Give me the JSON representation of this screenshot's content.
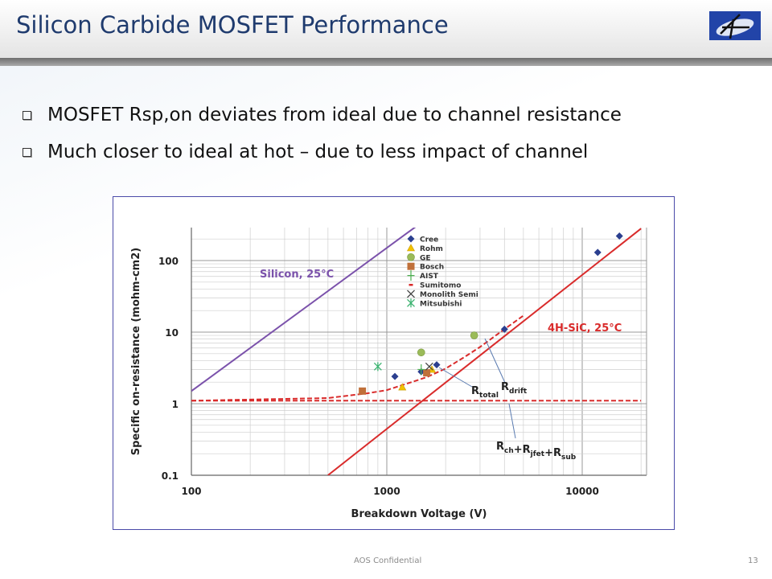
{
  "slide": {
    "title": "Silicon Carbide MOSFET Performance",
    "logo_text": "A",
    "bullets": [
      "MOSFET Rsp,on deviates from ideal due to channel resistance",
      "Much closer to ideal at hot – due to less impact of channel"
    ],
    "footer": "AOS Confidential",
    "page_number": "13"
  },
  "chart_data": {
    "type": "scatter",
    "xlabel": "Breakdown Voltage (V)",
    "ylabel": "Specific on-resistance (mohm-cm2)",
    "xscale": "log",
    "yscale": "log",
    "xlim": [
      100,
      20000
    ],
    "ylim": [
      0.1,
      290
    ],
    "grid": true,
    "legend_position": "top-center",
    "x_ticks": [
      "100",
      "1000",
      "10000"
    ],
    "y_ticks": [
      "0.1",
      "1",
      "10",
      "100"
    ],
    "series": [
      {
        "name": "Cree",
        "marker": "diamond",
        "color": "#2b3f8f",
        "points": [
          [
            1100,
            2.4
          ],
          [
            1500,
            2.8
          ],
          [
            1800,
            3.5
          ],
          [
            4000,
            11
          ],
          [
            12000,
            130
          ],
          [
            15500,
            220
          ]
        ]
      },
      {
        "name": "Rohm",
        "marker": "triangle",
        "color": "#f2c200",
        "points": [
          [
            1200,
            1.7
          ],
          [
            1700,
            3.0
          ]
        ]
      },
      {
        "name": "GE",
        "marker": "circle",
        "color": "#9bbb59",
        "points": [
          [
            1500,
            5.2
          ],
          [
            2800,
            9
          ]
        ]
      },
      {
        "name": "Bosch",
        "marker": "square",
        "color": "#c0703a",
        "points": [
          [
            750,
            1.5
          ],
          [
            1600,
            2.7
          ]
        ]
      },
      {
        "name": "AIST",
        "marker": "plus",
        "color": "#4caf50",
        "points": [
          [
            1500,
            3.0
          ]
        ]
      },
      {
        "name": "Sumitomo",
        "marker": "dash",
        "color": "#d92b2b",
        "points": []
      },
      {
        "name": "Monolith Semi",
        "marker": "x",
        "color": "#444444",
        "points": [
          [
            1650,
            3.3
          ]
        ]
      },
      {
        "name": "Mitsubishi",
        "marker": "asterisk",
        "color": "#3cb371",
        "points": [
          [
            900,
            3.3
          ]
        ]
      }
    ],
    "lines": [
      {
        "label": "Silicon, 25°C",
        "color": "#7b52ab",
        "style": "solid",
        "points": [
          [
            100,
            1.5
          ],
          [
            1400,
            294
          ]
        ]
      },
      {
        "label": "4H-SiC, 25°C",
        "color": "#d92b2b",
        "style": "solid",
        "points": [
          [
            500,
            0.1
          ],
          [
            20000,
            280
          ]
        ]
      },
      {
        "label": "Rch+Rjfet+Rsub",
        "color": "#d92b2b",
        "style": "dashed",
        "points": [
          [
            100,
            1.1
          ],
          [
            20000,
            1.1
          ]
        ]
      },
      {
        "label": "Rtotal",
        "color": "#d92b2b",
        "style": "dashed",
        "points": [
          [
            100,
            1.1
          ],
          [
            500,
            1.2
          ],
          [
            800,
            1.4
          ],
          [
            1000,
            1.55
          ],
          [
            1300,
            1.95
          ],
          [
            1600,
            2.35
          ],
          [
            2000,
            3.1
          ],
          [
            2500,
            4.5
          ],
          [
            3000,
            6.2
          ],
          [
            4000,
            11
          ],
          [
            5000,
            17
          ]
        ]
      }
    ],
    "annotations": {
      "silicon": "Silicon, 25°C",
      "sic": "4H-SiC, 25°C",
      "r_total": {
        "base": "R",
        "sub": "total"
      },
      "r_drift": {
        "base": "R",
        "sub": "drift"
      },
      "r_parts": [
        {
          "base": "R",
          "sub": "ch"
        },
        {
          "base": "+R",
          "sub": "jfet"
        },
        {
          "base": "+R",
          "sub": "sub"
        }
      ]
    }
  }
}
